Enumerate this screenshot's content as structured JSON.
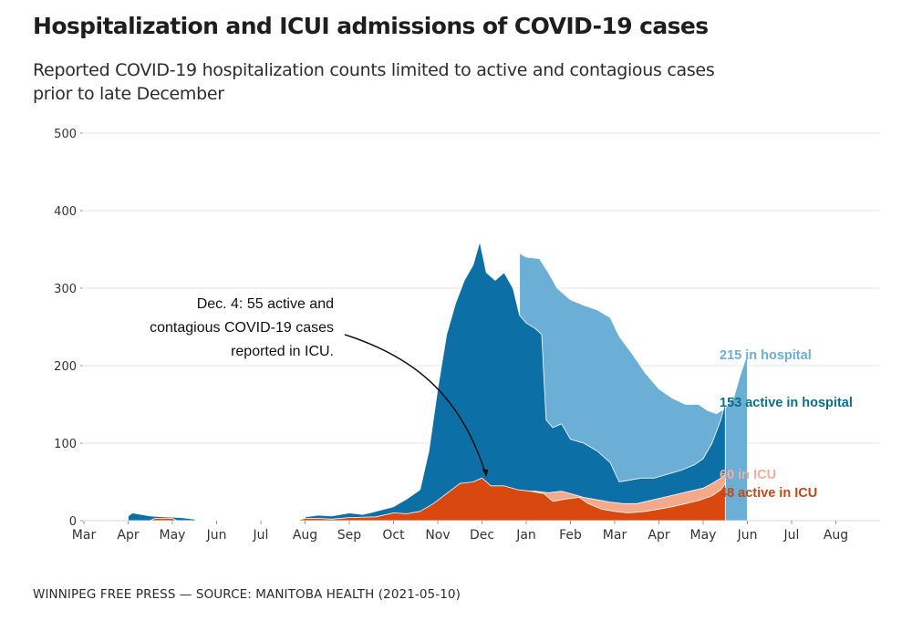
{
  "title": "Hospitalization and ICUI admissions of COVID-19 cases",
  "subtitle": "Reported COVID-19 hospitalization counts limited to active and contagious cases prior to late December",
  "footer": "WINNIPEG FREE PRESS — SOURCE: MANITOBA HEALTH (2021-05-10)",
  "chart_data": {
    "type": "area",
    "title": "Hospitalization and ICUI admissions of COVID-19 cases",
    "subtitle": "Reported COVID-19 hospitalization counts limited to active and contagious cases prior to late December",
    "xlabel": "",
    "ylabel": "",
    "ylim": [
      0,
      500
    ],
    "yticks": [
      0,
      100,
      200,
      300,
      400,
      500
    ],
    "grid": true,
    "x_range": [
      "2020-03-01",
      "2021-08-31"
    ],
    "xticks": [
      "Mar",
      "Apr",
      "May",
      "Jun",
      "Jul",
      "Aug",
      "Sep",
      "Oct",
      "Nov",
      "Dec",
      "Jan",
      "Feb",
      "Mar",
      "Apr",
      "May",
      "Jun",
      "Jul",
      "Aug"
    ],
    "x_months_offset_note": "x values are months since 2020-03-01 (0 = Mar 2020, 14 = May 2021)",
    "series": [
      {
        "name": "in hospital",
        "color": "#6baed6",
        "points": [
          [
            9.85,
            345
          ],
          [
            10.0,
            340
          ],
          [
            10.3,
            338
          ],
          [
            10.5,
            320
          ],
          [
            10.7,
            300
          ],
          [
            11.0,
            285
          ],
          [
            11.3,
            278
          ],
          [
            11.6,
            272
          ],
          [
            11.9,
            262
          ],
          [
            12.1,
            238
          ],
          [
            12.4,
            215
          ],
          [
            12.7,
            190
          ],
          [
            13.0,
            170
          ],
          [
            13.3,
            158
          ],
          [
            13.6,
            150
          ],
          [
            13.9,
            150
          ],
          [
            14.1,
            142
          ],
          [
            14.3,
            138
          ],
          [
            14.5,
            145
          ],
          [
            14.7,
            160
          ],
          [
            14.85,
            190
          ],
          [
            15.0,
            215
          ]
        ]
      },
      {
        "name": "active in hospital",
        "color": "#0c6fa5",
        "points": [
          [
            1.0,
            0
          ],
          [
            1.0,
            6
          ],
          [
            1.1,
            10
          ],
          [
            1.3,
            8
          ],
          [
            1.5,
            6
          ],
          [
            1.8,
            5
          ],
          [
            2.2,
            4
          ],
          [
            2.5,
            2
          ],
          [
            2.55,
            0
          ],
          [
            5.0,
            0
          ],
          [
            5.0,
            5
          ],
          [
            5.3,
            7
          ],
          [
            5.6,
            6
          ],
          [
            6.0,
            10
          ],
          [
            6.3,
            8
          ],
          [
            6.6,
            12
          ],
          [
            7.0,
            18
          ],
          [
            7.3,
            28
          ],
          [
            7.6,
            40
          ],
          [
            7.8,
            90
          ],
          [
            8.0,
            170
          ],
          [
            8.2,
            240
          ],
          [
            8.4,
            280
          ],
          [
            8.6,
            310
          ],
          [
            8.8,
            330
          ],
          [
            8.95,
            360
          ],
          [
            9.1,
            320
          ],
          [
            9.3,
            310
          ],
          [
            9.5,
            320
          ],
          [
            9.7,
            300
          ],
          [
            9.85,
            265
          ],
          [
            10.0,
            255
          ],
          [
            10.2,
            248
          ],
          [
            10.35,
            240
          ],
          [
            10.45,
            130
          ],
          [
            10.6,
            120
          ],
          [
            10.8,
            125
          ],
          [
            11.0,
            105
          ],
          [
            11.3,
            100
          ],
          [
            11.6,
            90
          ],
          [
            11.9,
            75
          ],
          [
            12.1,
            50
          ],
          [
            12.3,
            52
          ],
          [
            12.6,
            55
          ],
          [
            12.9,
            55
          ],
          [
            13.2,
            60
          ],
          [
            13.5,
            65
          ],
          [
            13.8,
            72
          ],
          [
            14.0,
            80
          ],
          [
            14.2,
            100
          ],
          [
            14.4,
            130
          ],
          [
            14.5,
            153
          ]
        ]
      },
      {
        "name": "in ICU",
        "color": "#f4a98a",
        "points": [
          [
            9.85,
            38
          ],
          [
            10.2,
            38
          ],
          [
            10.5,
            36
          ],
          [
            10.8,
            38
          ],
          [
            11.0,
            35
          ],
          [
            11.3,
            30
          ],
          [
            11.6,
            27
          ],
          [
            11.9,
            24
          ],
          [
            12.2,
            22
          ],
          [
            12.5,
            22
          ],
          [
            12.8,
            26
          ],
          [
            13.1,
            30
          ],
          [
            13.4,
            34
          ],
          [
            13.7,
            38
          ],
          [
            14.0,
            42
          ],
          [
            14.2,
            48
          ],
          [
            14.4,
            55
          ],
          [
            14.5,
            60
          ]
        ]
      },
      {
        "name": "active in ICU",
        "color": "#d9480f",
        "points": [
          [
            1.5,
            0
          ],
          [
            1.6,
            3
          ],
          [
            2.0,
            3
          ],
          [
            2.1,
            0
          ],
          [
            4.8,
            0
          ],
          [
            5.0,
            3
          ],
          [
            5.3,
            3
          ],
          [
            5.6,
            2
          ],
          [
            6.0,
            4
          ],
          [
            6.6,
            5
          ],
          [
            7.0,
            10
          ],
          [
            7.3,
            9
          ],
          [
            7.6,
            12
          ],
          [
            7.9,
            22
          ],
          [
            8.2,
            35
          ],
          [
            8.5,
            48
          ],
          [
            8.8,
            50
          ],
          [
            9.0,
            55
          ],
          [
            9.2,
            45
          ],
          [
            9.5,
            45
          ],
          [
            9.8,
            40
          ],
          [
            10.1,
            38
          ],
          [
            10.4,
            35
          ],
          [
            10.6,
            25
          ],
          [
            10.9,
            28
          ],
          [
            11.2,
            30
          ],
          [
            11.4,
            22
          ],
          [
            11.7,
            15
          ],
          [
            12.0,
            12
          ],
          [
            12.3,
            10
          ],
          [
            12.7,
            12
          ],
          [
            13.0,
            15
          ],
          [
            13.3,
            18
          ],
          [
            13.6,
            22
          ],
          [
            13.9,
            26
          ],
          [
            14.2,
            32
          ],
          [
            14.4,
            40
          ],
          [
            14.5,
            48
          ]
        ]
      }
    ],
    "end_labels": [
      {
        "series": "in hospital",
        "text": "215 in hospital",
        "value": 215,
        "color": "#6baed6"
      },
      {
        "series": "active in hospital",
        "text": "153 active in hospital",
        "value": 153,
        "color": "#0a6e8c"
      },
      {
        "series": "in ICU",
        "text": "60 in ICU",
        "value": 60,
        "color": "#f0b09a"
      },
      {
        "series": "active in ICU",
        "text": "48 active in ICU",
        "value": 48,
        "color": "#c84616"
      }
    ],
    "annotations": [
      {
        "lines": [
          "Dec. 4: 55 active and",
          "contagious COVID-19 cases",
          "reported in ICU."
        ],
        "target": {
          "date": "2020-12-04",
          "value": 55
        }
      }
    ]
  }
}
